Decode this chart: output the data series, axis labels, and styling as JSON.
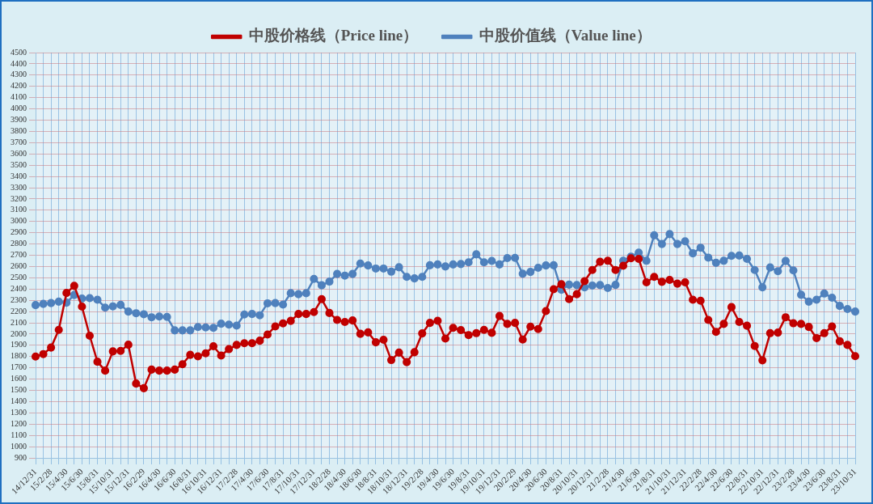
{
  "chart_data": {
    "type": "line",
    "categories": [
      "14/12/31",
      null,
      "15/2/28",
      null,
      "15/4/30",
      null,
      "15/6/30",
      null,
      "15/8/31",
      null,
      "15/10/31",
      null,
      "15/12/31",
      null,
      "16/2/29",
      null,
      "16/4/30",
      null,
      "16/6/30",
      null,
      "16/8/31",
      null,
      "16/10/31",
      null,
      "16/12/31",
      null,
      "17/2/28",
      null,
      "17/4/30",
      null,
      "17/6/30",
      null,
      "17/8/31",
      null,
      "17/10/31",
      null,
      "17/12/31",
      null,
      "18/2/28",
      null,
      "18/4/30",
      null,
      "18/6/30",
      null,
      "18/8/31",
      null,
      "18/10/31",
      null,
      "18/12/31",
      null,
      "19/2/28",
      null,
      "19/4/30",
      null,
      "19/6/30",
      null,
      "19/8/31",
      null,
      "19/10/31",
      null,
      "19/12/31",
      null,
      "20/2/29",
      null,
      "20/4/30",
      null,
      "20/6/30",
      null,
      "20/8/31",
      null,
      "20/10/31",
      null,
      "20/12/31",
      null,
      "21/2/28",
      null,
      "21/4/30",
      null,
      "21/6/30",
      null,
      "21/8/31",
      null,
      "21/10/31",
      null,
      "21/12/31",
      null,
      "22/2/28",
      null,
      "22/4/30",
      null,
      "22/6/30",
      null,
      "22/8/31",
      null,
      "22/10/31",
      null,
      "22/12/31",
      null,
      "23/2/28",
      null,
      "23/4/30",
      null,
      "23/6/30",
      null,
      "23/8/31",
      null,
      "23/10/31"
    ],
    "series": [
      {
        "name": "中股价格线（Price line）",
        "color": "#c00000",
        "values": [
          1800,
          1822,
          1880,
          2037,
          2365,
          2428,
          2244,
          1985,
          1754,
          1675,
          1846,
          1850,
          1905,
          1560,
          1519,
          1684,
          1675,
          1675,
          1684,
          1732,
          1815,
          1802,
          1829,
          1892,
          1809,
          1866,
          1903,
          1919,
          1919,
          1941,
          1996,
          2068,
          2095,
          2117,
          2178,
          2178,
          2195,
          2310,
          2187,
          2125,
          2107,
          2121,
          2002,
          2015,
          1927,
          1949,
          1769,
          1835,
          1751,
          1839,
          2006,
          2099,
          2118,
          1960,
          2055,
          2035,
          1991,
          2008,
          2037,
          2011,
          2160,
          2090,
          2099,
          1951,
          2066,
          2044,
          2204,
          2398,
          2442,
          2310,
          2354,
          2470,
          2569,
          2642,
          2651,
          2569,
          2607,
          2673,
          2668,
          2459,
          2508,
          2464,
          2481,
          2448,
          2459,
          2305,
          2296,
          2125,
          2019,
          2090,
          2239,
          2107,
          2074,
          1894,
          1767,
          2008,
          2013,
          2149,
          2096,
          2090,
          2063,
          1964,
          2008,
          2068,
          1936,
          1903,
          1804
        ]
      },
      {
        "name": "中股价值线（Value line）",
        "color": "#4f81bd",
        "values": [
          2257,
          2268,
          2275,
          2288,
          2279,
          2347,
          2316,
          2319,
          2305,
          2235,
          2246,
          2259,
          2200,
          2185,
          2176,
          2149,
          2156,
          2152,
          2033,
          2033,
          2033,
          2062,
          2059,
          2055,
          2092,
          2084,
          2075,
          2174,
          2178,
          2167,
          2273,
          2275,
          2262,
          2363,
          2354,
          2363,
          2490,
          2433,
          2466,
          2534,
          2519,
          2534,
          2626,
          2609,
          2582,
          2582,
          2554,
          2593,
          2508,
          2494,
          2508,
          2611,
          2618,
          2600,
          2618,
          2622,
          2637,
          2708,
          2637,
          2650,
          2618,
          2675,
          2677,
          2536,
          2552,
          2589,
          2609,
          2611,
          2393,
          2439,
          2435,
          2415,
          2431,
          2435,
          2409,
          2437,
          2651,
          2688,
          2723,
          2651,
          2877,
          2800,
          2888,
          2800,
          2824,
          2717,
          2767,
          2679,
          2633,
          2651,
          2695,
          2697,
          2668,
          2569,
          2415,
          2591,
          2558,
          2649,
          2565,
          2349,
          2288,
          2305,
          2360,
          2323,
          2250,
          2222,
          2200
        ]
      }
    ],
    "ylim": [
      900,
      4500
    ],
    "yticks": [
      900,
      1000,
      1100,
      1200,
      1300,
      1400,
      1500,
      1600,
      1700,
      1800,
      1900,
      2000,
      2100,
      2200,
      2300,
      2400,
      2500,
      2600,
      2700,
      2800,
      2900,
      3000,
      3100,
      3200,
      3300,
      3400,
      3500,
      3600,
      3700,
      3800,
      3900,
      4000,
      4100,
      4200,
      4300,
      4400,
      4500
    ],
    "grid": true,
    "legend": "top",
    "marker": "circle"
  }
}
